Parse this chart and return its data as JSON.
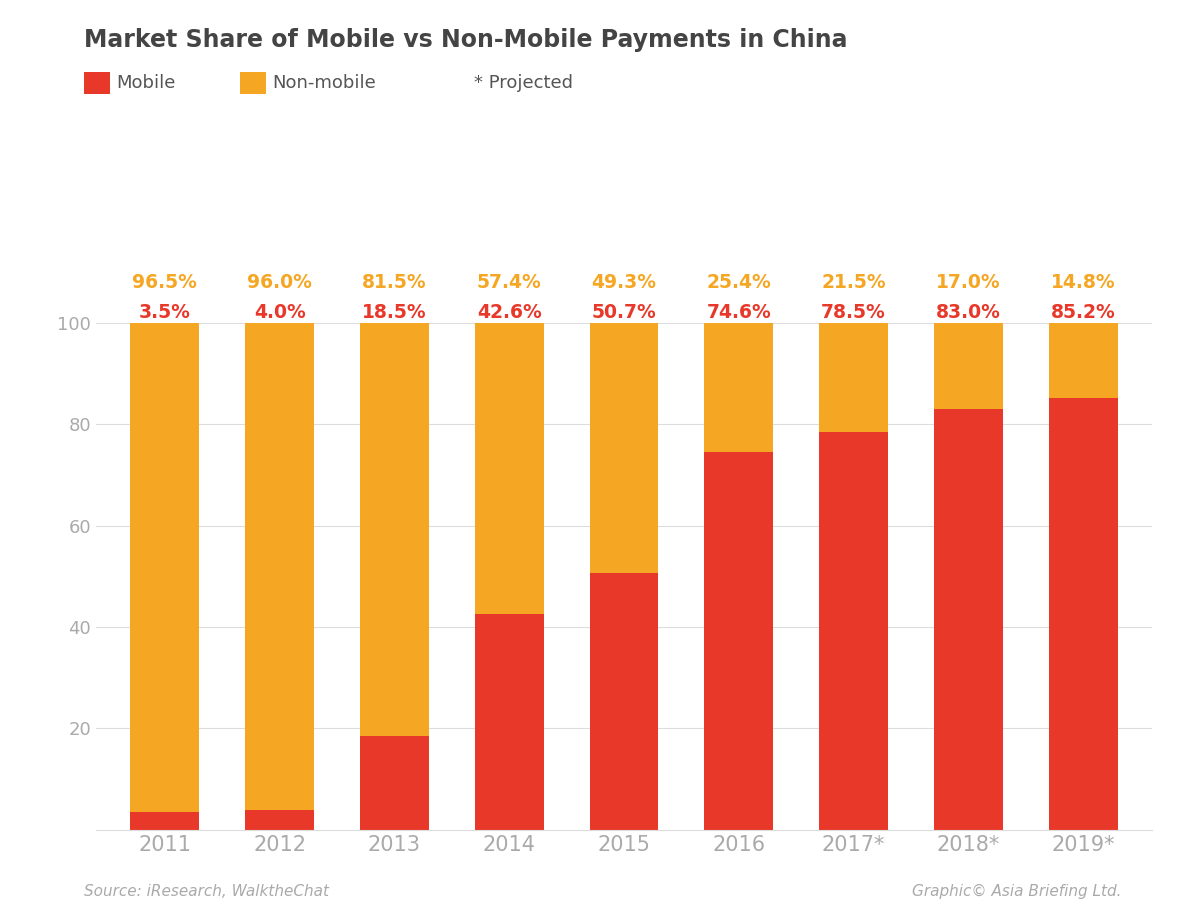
{
  "title": "Market Share of Mobile vs Non-Mobile Payments in China",
  "years": [
    "2011",
    "2012",
    "2013",
    "2014",
    "2015",
    "2016",
    "2017*",
    "2018*",
    "2019*"
  ],
  "mobile": [
    3.5,
    4.0,
    18.5,
    42.6,
    50.7,
    74.6,
    78.5,
    83.0,
    85.2
  ],
  "non_mobile": [
    96.5,
    96.0,
    81.5,
    57.4,
    49.3,
    25.4,
    21.5,
    17.0,
    14.8
  ],
  "mobile_color": "#e8382a",
  "non_mobile_color": "#f5a623",
  "mobile_label": "Mobile",
  "non_mobile_label": "Non-mobile",
  "projected_label": "* Projected",
  "source_text": "Source: iResearch, WalktheChat",
  "credit_text": "Graphic© Asia Briefing Ltd.",
  "bg_color": "#ffffff",
  "grid_color": "#dddddd",
  "label_color_mobile": "#e8382a",
  "label_color_nonmobile": "#f5a623",
  "axis_label_color": "#aaaaaa",
  "legend_text_color": "#555555",
  "title_color": "#444444",
  "bar_width": 0.6
}
